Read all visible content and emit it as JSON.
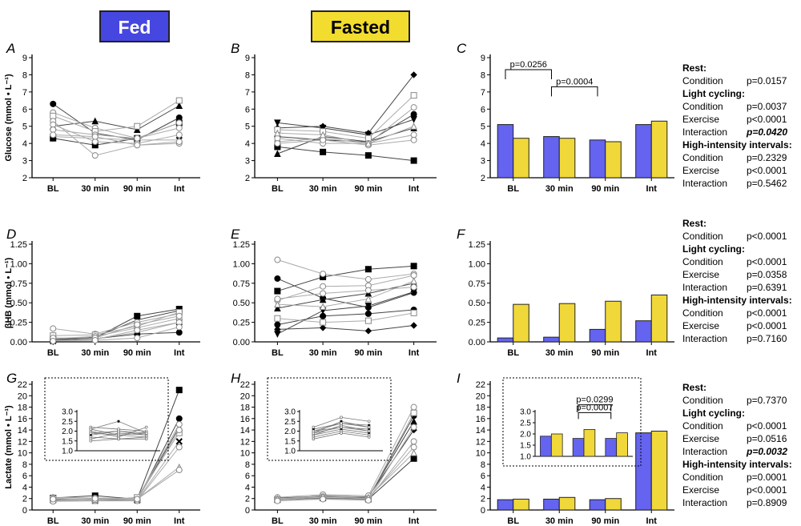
{
  "headers": {
    "fed": "Fed",
    "fasted": "Fasted"
  },
  "colors": {
    "fed_bar": "#6464f0",
    "fasted_bar": "#f0d83a",
    "fed_header": "#4646e0",
    "fasted_header": "#f2dc2e"
  },
  "chart_data": [
    {
      "id": "A",
      "type": "line",
      "xlabels": [
        "BL",
        "30 min",
        "90 min",
        "Int"
      ],
      "ylabel": "Glucose (mmol • L⁻¹)",
      "yticks": [
        "2",
        "3",
        "4",
        "5",
        "6",
        "7",
        "8",
        "9"
      ],
      "ylim": [
        2,
        9
      ],
      "series": [
        {
          "marker": "circle-filled",
          "values": [
            6.3,
            4.6,
            4.2,
            5.5
          ]
        },
        {
          "marker": "square-filled",
          "values": [
            4.3,
            3.9,
            4.3,
            5.2
          ]
        },
        {
          "marker": "triangle-filled",
          "values": [
            5.0,
            5.3,
            4.8,
            6.2
          ]
        },
        {
          "marker": "x",
          "values": [
            4.4,
            4.3,
            4.2,
            4.2
          ]
        },
        {
          "marker": "circle-open",
          "values": [
            5.8,
            4.9,
            4.3,
            5.2
          ]
        },
        {
          "marker": "square-open",
          "values": [
            5.6,
            4.7,
            5.0,
            6.5
          ]
        },
        {
          "marker": "circle-open",
          "values": [
            5.3,
            3.3,
            3.9,
            4.0
          ]
        },
        {
          "marker": "circle-open",
          "values": [
            5.1,
            4.1,
            4.0,
            4.5
          ]
        },
        {
          "marker": "circle-open",
          "values": [
            4.8,
            4.5,
            4.3,
            4.9
          ]
        },
        {
          "marker": "circle-open",
          "values": [
            4.5,
            4.4,
            3.9,
            4.1
          ]
        }
      ]
    },
    {
      "id": "B",
      "type": "line",
      "xlabels": [
        "BL",
        "30 min",
        "90 min",
        "Int"
      ],
      "ylabel": "",
      "yticks": [
        "2",
        "3",
        "4",
        "5",
        "6",
        "7",
        "8",
        "9"
      ],
      "ylim": [
        2,
        9
      ],
      "series": [
        {
          "marker": "diamond-filled",
          "values": [
            4.9,
            5.0,
            4.6,
            8.0
          ]
        },
        {
          "marker": "square-filled",
          "values": [
            3.8,
            3.5,
            3.3,
            3.0
          ]
        },
        {
          "marker": "triangle-filled",
          "values": [
            3.4,
            4.4,
            4.1,
            4.9
          ]
        },
        {
          "marker": "triangle-down-filled",
          "values": [
            5.2,
            4.9,
            4.5,
            5.4
          ]
        },
        {
          "marker": "circle-filled",
          "values": [
            4.4,
            4.2,
            4.1,
            5.7
          ]
        },
        {
          "marker": "square-open",
          "values": [
            4.8,
            4.7,
            4.3,
            6.8
          ]
        },
        {
          "marker": "circle-open",
          "values": [
            4.1,
            4.3,
            4.0,
            6.1
          ]
        },
        {
          "marker": "circle-open",
          "values": [
            4.3,
            4.0,
            4.0,
            4.5
          ]
        },
        {
          "marker": "circle-open",
          "values": [
            4.0,
            4.2,
            3.9,
            4.2
          ]
        },
        {
          "marker": "triangle-open",
          "values": [
            4.6,
            4.5,
            4.0,
            5.0
          ]
        }
      ]
    },
    {
      "id": "C",
      "type": "bar",
      "xlabels": [
        "BL",
        "30 min",
        "90 min",
        "Int"
      ],
      "ylabel": "",
      "yticks": [
        "2",
        "3",
        "4",
        "5",
        "6",
        "7",
        "8",
        "9"
      ],
      "ylim": [
        2,
        9
      ],
      "fed": [
        5.1,
        4.4,
        4.2,
        5.1
      ],
      "fasted": [
        4.3,
        4.3,
        4.1,
        5.3
      ],
      "brackets": [
        {
          "label": "p=0.0256",
          "from": 0,
          "to": 1,
          "y": 8.3
        },
        {
          "label": "p=0.0004",
          "from": 1,
          "to": 2,
          "y": 7.3
        }
      ]
    },
    {
      "id": "D",
      "type": "line",
      "xlabels": [
        "BL",
        "30 min",
        "90 min",
        "Int"
      ],
      "ylabel": "βHB (mmol • L⁻¹)",
      "yticks": [
        "0.00",
        "0.25",
        "0.50",
        "0.75",
        "1.00",
        "1.25"
      ],
      "ylim": [
        0,
        1.25
      ],
      "series": [
        {
          "marker": "square-filled",
          "values": [
            0.03,
            0.05,
            0.33,
            0.42
          ]
        },
        {
          "marker": "circle-filled",
          "values": [
            0.02,
            0.04,
            0.1,
            0.12
          ]
        },
        {
          "marker": "triangle-filled",
          "values": [
            0.03,
            0.06,
            0.28,
            0.4
          ]
        },
        {
          "marker": "x",
          "values": [
            0.01,
            0.04,
            0.12,
            0.25
          ]
        },
        {
          "marker": "circle-open",
          "values": [
            0.17,
            0.1,
            0.25,
            0.36
          ]
        },
        {
          "marker": "square-open",
          "values": [
            0.08,
            0.09,
            0.2,
            0.38
          ]
        },
        {
          "marker": "circle-open",
          "values": [
            0.04,
            0.07,
            0.18,
            0.3
          ]
        },
        {
          "marker": "circle-open",
          "values": [
            0.02,
            0.03,
            0.15,
            0.25
          ]
        },
        {
          "marker": "circle-open",
          "values": [
            0.05,
            0.05,
            0.22,
            0.33
          ]
        },
        {
          "marker": "circle-open",
          "values": [
            0.01,
            0.02,
            0.05,
            0.19
          ]
        }
      ]
    },
    {
      "id": "E",
      "type": "line",
      "xlabels": [
        "BL",
        "30 min",
        "90 min",
        "Int"
      ],
      "ylabel": "",
      "yticks": [
        "0.00",
        "0.25",
        "0.50",
        "0.75",
        "1.00",
        "1.25"
      ],
      "ylim": [
        0,
        1.25
      ],
      "series": [
        {
          "marker": "square-filled",
          "values": [
            0.65,
            0.83,
            0.93,
            0.97
          ]
        },
        {
          "marker": "circle-filled",
          "values": [
            0.81,
            0.56,
            0.44,
            0.63
          ]
        },
        {
          "marker": "triangle-filled",
          "values": [
            0.43,
            0.54,
            0.62,
            0.75
          ]
        },
        {
          "marker": "diamond-filled",
          "values": [
            0.16,
            0.18,
            0.14,
            0.21
          ]
        },
        {
          "marker": "triangle-down-filled",
          "values": [
            0.1,
            0.4,
            0.46,
            0.64
          ]
        },
        {
          "marker": "circle-filled",
          "values": [
            0.22,
            0.33,
            0.36,
            0.41
          ]
        },
        {
          "marker": "circle-open",
          "values": [
            1.05,
            0.87,
            0.8,
            0.87
          ]
        },
        {
          "marker": "circle-open",
          "values": [
            0.53,
            0.71,
            0.72,
            0.85
          ]
        },
        {
          "marker": "square-open",
          "values": [
            0.3,
            0.25,
            0.27,
            0.37
          ]
        },
        {
          "marker": "triangle-open",
          "values": [
            0.48,
            0.45,
            0.55,
            0.78
          ]
        },
        {
          "marker": "circle-open",
          "values": [
            0.55,
            0.62,
            0.66,
            0.7
          ]
        }
      ]
    },
    {
      "id": "F",
      "type": "bar",
      "xlabels": [
        "BL",
        "30 min",
        "90 min",
        "Int"
      ],
      "ylabel": "",
      "yticks": [
        "0.00",
        "0.25",
        "0.50",
        "0.75",
        "1.00",
        "1.25"
      ],
      "ylim": [
        0,
        1.25
      ],
      "fed": [
        0.05,
        0.06,
        0.16,
        0.27
      ],
      "fasted": [
        0.48,
        0.49,
        0.52,
        0.6
      ],
      "brackets": []
    },
    {
      "id": "G",
      "type": "line",
      "xlabels": [
        "BL",
        "30 min",
        "90 min",
        "Int"
      ],
      "ylabel": "Lactate (mmol • L⁻¹)",
      "yticks": [
        "0",
        "2",
        "4",
        "6",
        "8",
        "10",
        "12",
        "14",
        "16",
        "18",
        "20",
        "22"
      ],
      "ylim": [
        0,
        22
      ],
      "inset": {
        "yticks": [
          "1.0",
          "1.5",
          "2.0",
          "2.5",
          "3.0"
        ],
        "ylim": [
          1.0,
          3.0
        ]
      },
      "series": [
        {
          "marker": "square-filled",
          "values": [
            2.1,
            2.5,
            1.9,
            21.0
          ]
        },
        {
          "marker": "circle-filled",
          "values": [
            1.9,
            1.8,
            1.7,
            16.0
          ]
        },
        {
          "marker": "triangle-filled",
          "values": [
            1.8,
            2.0,
            1.8,
            14.5
          ]
        },
        {
          "marker": "x",
          "values": [
            1.7,
            1.6,
            1.7,
            12.0
          ]
        },
        {
          "marker": "circle-open",
          "values": [
            2.2,
            2.1,
            2.0,
            15.0
          ]
        },
        {
          "marker": "square-open",
          "values": [
            2.0,
            1.7,
            2.2,
            13.5
          ]
        },
        {
          "marker": "circle-open",
          "values": [
            1.6,
            1.9,
            1.8,
            14.0
          ]
        },
        {
          "marker": "circle-open",
          "values": [
            1.5,
            1.6,
            1.6,
            11.0
          ]
        },
        {
          "marker": "triangle-open",
          "values": [
            2.1,
            1.8,
            1.9,
            7.5
          ]
        },
        {
          "marker": "circle-open",
          "values": [
            1.9,
            2.0,
            1.9,
            7.0
          ]
        }
      ]
    },
    {
      "id": "H",
      "type": "line",
      "xlabels": [
        "BL",
        "30 min",
        "90 min",
        "Int"
      ],
      "ylabel": "",
      "yticks": [
        "0",
        "2",
        "4",
        "6",
        "8",
        "10",
        "12",
        "14",
        "16",
        "18",
        "20",
        "22"
      ],
      "ylim": [
        0,
        22
      ],
      "inset": {
        "yticks": [
          "1.0",
          "1.5",
          "2.0",
          "2.5",
          "3.0"
        ],
        "ylim": [
          1.0,
          3.0
        ]
      },
      "series": [
        {
          "marker": "square-filled",
          "values": [
            1.8,
            2.1,
            1.9,
            9.0
          ]
        },
        {
          "marker": "circle-filled",
          "values": [
            2.0,
            2.2,
            2.1,
            16.5
          ]
        },
        {
          "marker": "triangle-filled",
          "values": [
            1.9,
            2.5,
            2.2,
            15.5
          ]
        },
        {
          "marker": "diamond-filled",
          "values": [
            2.1,
            2.4,
            2.3,
            14.0
          ]
        },
        {
          "marker": "circle-open",
          "values": [
            2.2,
            2.7,
            2.5,
            18.0
          ]
        },
        {
          "marker": "square-open",
          "values": [
            1.8,
            2.3,
            2.0,
            17.0
          ]
        },
        {
          "marker": "circle-open",
          "values": [
            1.7,
            2.0,
            1.8,
            12.0
          ]
        },
        {
          "marker": "circle-open",
          "values": [
            1.9,
            2.2,
            2.0,
            11.0
          ]
        },
        {
          "marker": "triangle-open",
          "values": [
            2.0,
            2.4,
            2.2,
            10.0
          ]
        },
        {
          "marker": "circle-open",
          "values": [
            1.6,
            1.9,
            1.7,
            14.5
          ]
        }
      ]
    },
    {
      "id": "I",
      "type": "bar",
      "xlabels": [
        "BL",
        "30 min",
        "90 min",
        "Int"
      ],
      "ylabel": "",
      "yticks": [
        "0",
        "2",
        "4",
        "6",
        "8",
        "10",
        "12",
        "14",
        "16",
        "18",
        "20",
        "22"
      ],
      "ylim": [
        0,
        22
      ],
      "fed": [
        1.8,
        1.9,
        1.8,
        13.5
      ],
      "fasted": [
        1.9,
        2.2,
        2.0,
        13.8
      ],
      "brackets": [],
      "inset": {
        "yticks": [
          "1.0",
          "1.5",
          "2.0",
          "2.5",
          "3.0"
        ],
        "ylim": [
          1.0,
          3.0
        ],
        "fed": [
          1.9,
          1.8,
          1.8
        ],
        "fasted": [
          2.0,
          2.2,
          2.05
        ],
        "brackets": [
          {
            "label": "p=0.0007",
            "from": 1,
            "to": 2,
            "y": 2.95
          },
          {
            "label": "p=0.0299",
            "from": 1,
            "to": 2,
            "y": 3.3
          }
        ]
      }
    }
  ],
  "stats": [
    {
      "id": "stats-C",
      "lines": [
        {
          "label": "Rest:",
          "value": "",
          "style": "b"
        },
        {
          "label": "Condition",
          "value": "p=0.0157",
          "style": ""
        },
        {
          "label": "Light cycling:",
          "value": "",
          "style": "b"
        },
        {
          "label": "Condition",
          "value": "p=0.0037",
          "style": ""
        },
        {
          "label": "Exercise",
          "value": "p<0.0001",
          "style": ""
        },
        {
          "label": "Interaction",
          "value": "p=0.0420",
          "style": "bi"
        },
        {
          "label": "High-intensity intervals:",
          "value": "",
          "style": "b"
        },
        {
          "label": "Condition",
          "value": "p=0.2329",
          "style": ""
        },
        {
          "label": "Exercise",
          "value": "p<0.0001",
          "style": ""
        },
        {
          "label": "Interaction",
          "value": "p=0.5462",
          "style": ""
        }
      ]
    },
    {
      "id": "stats-F",
      "lines": [
        {
          "label": "Rest:",
          "value": "",
          "style": "b"
        },
        {
          "label": "Condition",
          "value": "p<0.0001",
          "style": ""
        },
        {
          "label": "Light cycling:",
          "value": "",
          "style": "b"
        },
        {
          "label": "Condition",
          "value": "p<0.0001",
          "style": ""
        },
        {
          "label": "Exercise",
          "value": "p=0.0358",
          "style": ""
        },
        {
          "label": "Interaction",
          "value": "p=0.6391",
          "style": ""
        },
        {
          "label": "High-intensity intervals:",
          "value": "",
          "style": "b"
        },
        {
          "label": "Condition",
          "value": "p<0.0001",
          "style": ""
        },
        {
          "label": "Exercise",
          "value": "p<0.0001",
          "style": ""
        },
        {
          "label": "Interaction",
          "value": "p=0.7160",
          "style": ""
        }
      ]
    },
    {
      "id": "stats-I",
      "lines": [
        {
          "label": "Rest:",
          "value": "",
          "style": "b"
        },
        {
          "label": "Condition",
          "value": "p=0.7370",
          "style": ""
        },
        {
          "label": "Light cycling:",
          "value": "",
          "style": "b"
        },
        {
          "label": "Condition",
          "value": "p<0.0001",
          "style": ""
        },
        {
          "label": "Exercise",
          "value": "p=0.0516",
          "style": ""
        },
        {
          "label": "Interaction",
          "value": "p=0.0032",
          "style": "bi"
        },
        {
          "label": "High-intensity intervals:",
          "value": "",
          "style": "b"
        },
        {
          "label": "Condition",
          "value": "p=0.0001",
          "style": ""
        },
        {
          "label": "Exercise",
          "value": "p<0.0001",
          "style": ""
        },
        {
          "label": "Interaction",
          "value": "p=0.8909",
          "style": ""
        }
      ]
    }
  ]
}
